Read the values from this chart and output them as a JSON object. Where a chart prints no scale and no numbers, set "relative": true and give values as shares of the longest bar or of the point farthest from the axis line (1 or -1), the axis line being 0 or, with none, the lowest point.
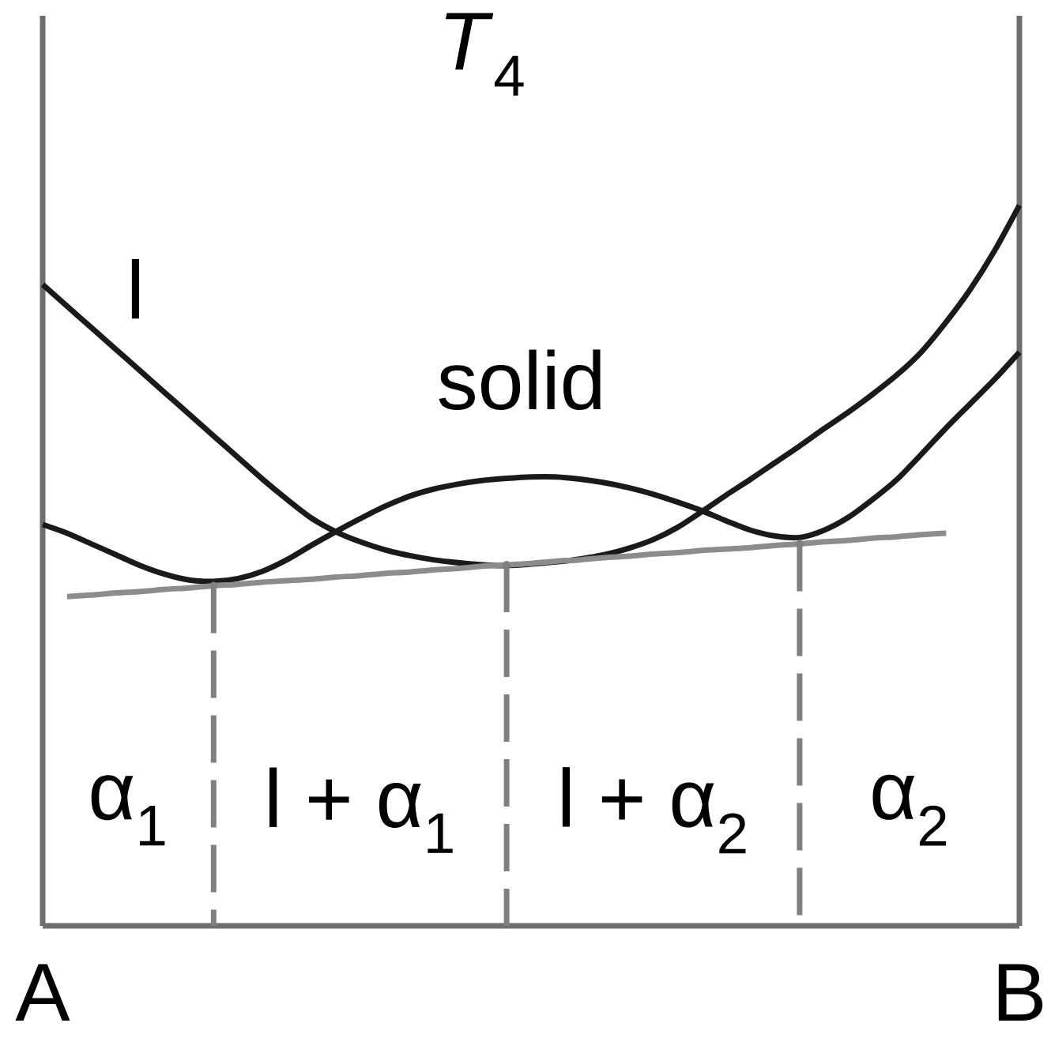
{
  "chart_data": {
    "type": "line",
    "title": "*T*$_{4}$",
    "relative": true,
    "categories": [
      "A",
      null,
      null,
      null,
      null,
      null,
      null,
      null,
      null,
      null,
      null,
      null,
      null,
      null,
      null,
      null,
      null,
      null,
      null,
      null,
      null,
      null,
      null,
      null,
      null,
      null,
      null,
      null,
      null,
      null,
      null,
      null,
      null,
      null,
      null,
      null,
      null,
      null,
      null,
      null,
      "B"
    ],
    "series": [
      {
        "name": "l",
        "color": "#1a1a1a",
        "values": [
          0.89,
          0.86,
          0.83,
          0.8,
          0.77,
          0.74,
          0.71,
          0.68,
          0.65,
          0.62,
          0.592,
          0.566,
          0.547,
          0.533,
          0.522,
          0.514,
          0.508,
          0.504,
          0.501,
          0.5,
          0.502,
          0.505,
          0.509,
          0.515,
          0.524,
          0.536,
          0.553,
          0.575,
          0.598,
          0.62,
          0.643,
          0.666,
          0.69,
          0.713,
          0.738,
          0.765,
          0.797,
          0.838,
          0.884,
          0.938,
          1
        ]
      },
      {
        "name": "solid",
        "color": "#1a1a1a",
        "values": [
          0.557,
          0.545,
          0.53,
          0.515,
          0.5,
          0.488,
          0.48,
          0.478,
          0.482,
          0.492,
          0.508,
          0.528,
          0.547,
          0.565,
          0.582,
          0.596,
          0.606,
          0.613,
          0.618,
          0.621,
          0.623,
          0.623,
          0.62,
          0.615,
          0.608,
          0.599,
          0.588,
          0.576,
          0.562,
          0.549,
          0.541,
          0.539,
          0.549,
          0.567,
          0.592,
          0.62,
          0.655,
          0.691,
          0.725,
          0.759,
          0.796
        ]
      },
      {
        "color": "#8c8c8c",
        "values": [
          null,
          0.457,
          0.459,
          0.462,
          0.464,
          0.467,
          0.469,
          0.472,
          0.474,
          0.477,
          0.479,
          0.481,
          0.484,
          0.486,
          0.489,
          0.491,
          0.494,
          0.496,
          0.499,
          0.501,
          0.503,
          0.506,
          0.508,
          0.511,
          0.513,
          0.516,
          0.518,
          0.521,
          0.523,
          0.525,
          0.528,
          0.53,
          0.533,
          0.535,
          0.538,
          0.54,
          0.543,
          0.545,
          null,
          null,
          null
        ]
      },
      {
        "type": "lollipop",
        "color": "#808080",
        "line_style": "dashed",
        "marker": "circle",
        "values": [
          null,
          null,
          null,
          null,
          null,
          null,
          null,
          0.472,
          null,
          null,
          null,
          null,
          null,
          null,
          null,
          null,
          null,
          null,
          null,
          0.501,
          null,
          null,
          null,
          null,
          null,
          null,
          null,
          null,
          null,
          null,
          null,
          0.53,
          null,
          null,
          null,
          null,
          null,
          null,
          null,
          null,
          null
        ]
      }
    ],
    "annotations": [
      "α$_{1}$",
      "l + α$_{1}$",
      "l + α$_{2}$",
      "α$_{2}$"
    ]
  }
}
